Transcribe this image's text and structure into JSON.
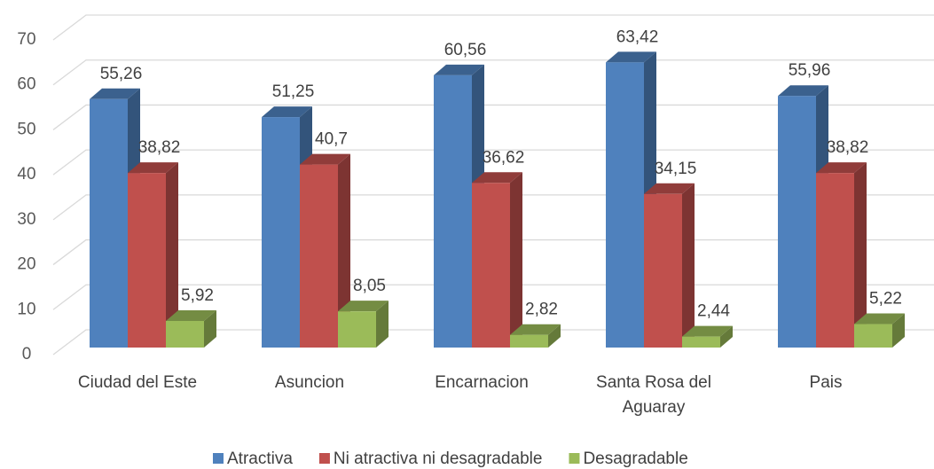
{
  "chart_data": {
    "type": "bar3d",
    "categories": [
      "Ciudad del Este",
      "Asuncion",
      "Encarnacion",
      "Santa Rosa del Aguaray",
      "Pais"
    ],
    "series": [
      {
        "name": "Atractiva",
        "color": "#4f81bd",
        "values": [
          55.26,
          51.25,
          60.56,
          63.42,
          55.96
        ],
        "value_labels": [
          "55,26",
          "51,25",
          "60,56",
          "63,42",
          "55,96"
        ]
      },
      {
        "name": "Ni atractiva ni desagradable",
        "color": "#c0504d",
        "values": [
          38.82,
          40.7,
          36.62,
          34.15,
          38.82
        ],
        "value_labels": [
          "38,82",
          "40,7",
          "36,62",
          "34,15",
          "38,82"
        ]
      },
      {
        "name": "Desagradable",
        "color": "#9bbb59",
        "values": [
          5.92,
          8.05,
          2.82,
          2.44,
          5.22
        ],
        "value_labels": [
          "5,92",
          "8,05",
          "2,82",
          "2,44",
          "5,22"
        ]
      }
    ],
    "ylim": [
      0,
      70
    ],
    "yticks": [
      0,
      10,
      20,
      30,
      40,
      50,
      60,
      70
    ],
    "grid": true,
    "legend": "bottom"
  }
}
